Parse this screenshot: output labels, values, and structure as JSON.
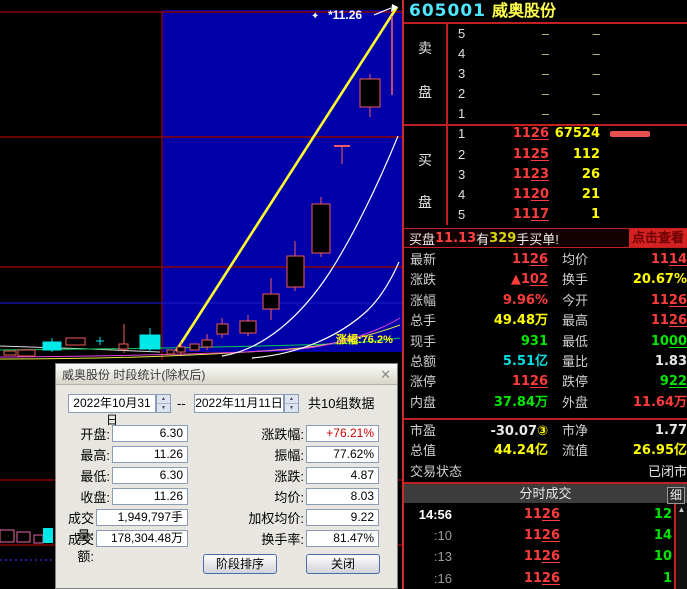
{
  "title": {
    "code": "605001",
    "name": "威奥股份"
  },
  "chart": {
    "marker_symbol": "✦",
    "marker_value": "*11.26",
    "gain_label": "涨幅:76.2%"
  },
  "order_book": {
    "sell_char1": "卖",
    "sell_char2": "盘",
    "buy_char1": "买",
    "buy_char2": "盘",
    "sell_rows": [
      {
        "level": "5",
        "price": "–",
        "vol": "–"
      },
      {
        "level": "4",
        "price": "–",
        "vol": "–"
      },
      {
        "level": "3",
        "price": "–",
        "vol": "–"
      },
      {
        "level": "2",
        "price": "–",
        "vol": "–"
      },
      {
        "level": "1",
        "price": "–",
        "vol": "–"
      }
    ],
    "buy_rows": [
      {
        "level": "1",
        "price": "1126",
        "vol": "67524"
      },
      {
        "level": "2",
        "price": "1125",
        "vol": "112"
      },
      {
        "level": "3",
        "price": "1123",
        "vol": "26"
      },
      {
        "level": "4",
        "price": "1120",
        "vol": "21"
      },
      {
        "level": "5",
        "price": "1117",
        "vol": "1"
      }
    ]
  },
  "news": {
    "pre": "买盘",
    "price": "11.13",
    "mid": "有",
    "count": "329",
    "suf": "手买单!",
    "link": "点击查看"
  },
  "stats": [
    {
      "l1": "最新",
      "v1": "1126",
      "c1": "v-red u2 num",
      "l2": "均价",
      "v2": "1114",
      "c2": "v-red u2 num"
    },
    {
      "l1": "涨跌",
      "v1": "▲102",
      "c1": "v-red u2 num",
      "l2": "换手",
      "v2": "20.67%",
      "c2": "v-yel num"
    },
    {
      "l1": "涨幅",
      "v1": "9.96%",
      "c1": "v-red num",
      "l2": "今开",
      "v2": "1126",
      "c2": "v-red u2 num"
    },
    {
      "l1": "总手",
      "v1": "49.48万",
      "c1": "v-yel num",
      "l2": "最高",
      "v2": "1126",
      "c2": "v-red u2 num"
    },
    {
      "l1": "现手",
      "v1": "931",
      "c1": "v-grn num",
      "l2": "最低",
      "v2": "1000",
      "c2": "v-grn u2 num"
    },
    {
      "l1": "总额",
      "v1": "5.51亿",
      "c1": "v-cyn num",
      "l2": "量比",
      "v2": "1.83",
      "c2": "v-wht num"
    },
    {
      "l1": "涨停",
      "v1": "1126",
      "c1": "v-red u2 num",
      "l2": "跌停",
      "v2": "922",
      "c2": "v-grn u2 num"
    },
    {
      "l1": "内盘",
      "v1": "37.84万",
      "c1": "v-grn num",
      "l2": "外盘",
      "v2": "11.64万",
      "c2": "v-red num"
    }
  ],
  "stats2": [
    {
      "l1": "市盈",
      "v1": "-30.07",
      "sfx1": "③",
      "c1": "v-wht num",
      "l2": "市净",
      "v2": "1.77",
      "c2": "v-wht num"
    },
    {
      "l1": "总值",
      "v1": "44.24亿",
      "c1": "v-yel num",
      "l2": "流值",
      "v2": "26.95亿",
      "c2": "v-yel num"
    },
    {
      "l1": "交易状态",
      "v1": "",
      "c1": "",
      "l2": "",
      "v2": "已闭市",
      "c2": "v-wht"
    }
  ],
  "tape_header": {
    "title": "分时成交",
    "detail": "细",
    "up_arrow": "▲"
  },
  "tape": [
    {
      "time": "14:56",
      "price": "1126",
      "vol": "12"
    },
    {
      "time": ":10",
      "price": "1126",
      "vol": "14"
    },
    {
      "time": ":13",
      "price": "1126",
      "vol": "10"
    },
    {
      "time": ":16",
      "price": "1126",
      "vol": "1"
    }
  ],
  "dialog": {
    "title": "威奥股份 时段统计(除权后)",
    "close": "✕",
    "date_from": "2022年10月31日",
    "separator": "--",
    "date_to": "2022年11月11日",
    "group_count": "共10组数据",
    "fields_left": [
      {
        "label": "开盘:",
        "value": "6.30"
      },
      {
        "label": "最高:",
        "value": "11.26"
      },
      {
        "label": "最低:",
        "value": "6.30"
      },
      {
        "label": "收盘:",
        "value": "11.26"
      },
      {
        "label": "成交量:",
        "value": "1,949,797手"
      },
      {
        "label": "成交额:",
        "value": "178,304.48万"
      }
    ],
    "fields_right": [
      {
        "label": "涨跌幅:",
        "value": "+76.21%"
      },
      {
        "label": "振幅:",
        "value": "77.62%"
      },
      {
        "label": "涨跌:",
        "value": "4.87"
      },
      {
        "label": "均价:",
        "value": "8.03"
      },
      {
        "label": "加权均价:",
        "value": "9.22"
      },
      {
        "label": "换手率:",
        "value": "81.47%"
      }
    ],
    "buttons": {
      "sort": "阶段排序",
      "close": "关闭"
    }
  }
}
